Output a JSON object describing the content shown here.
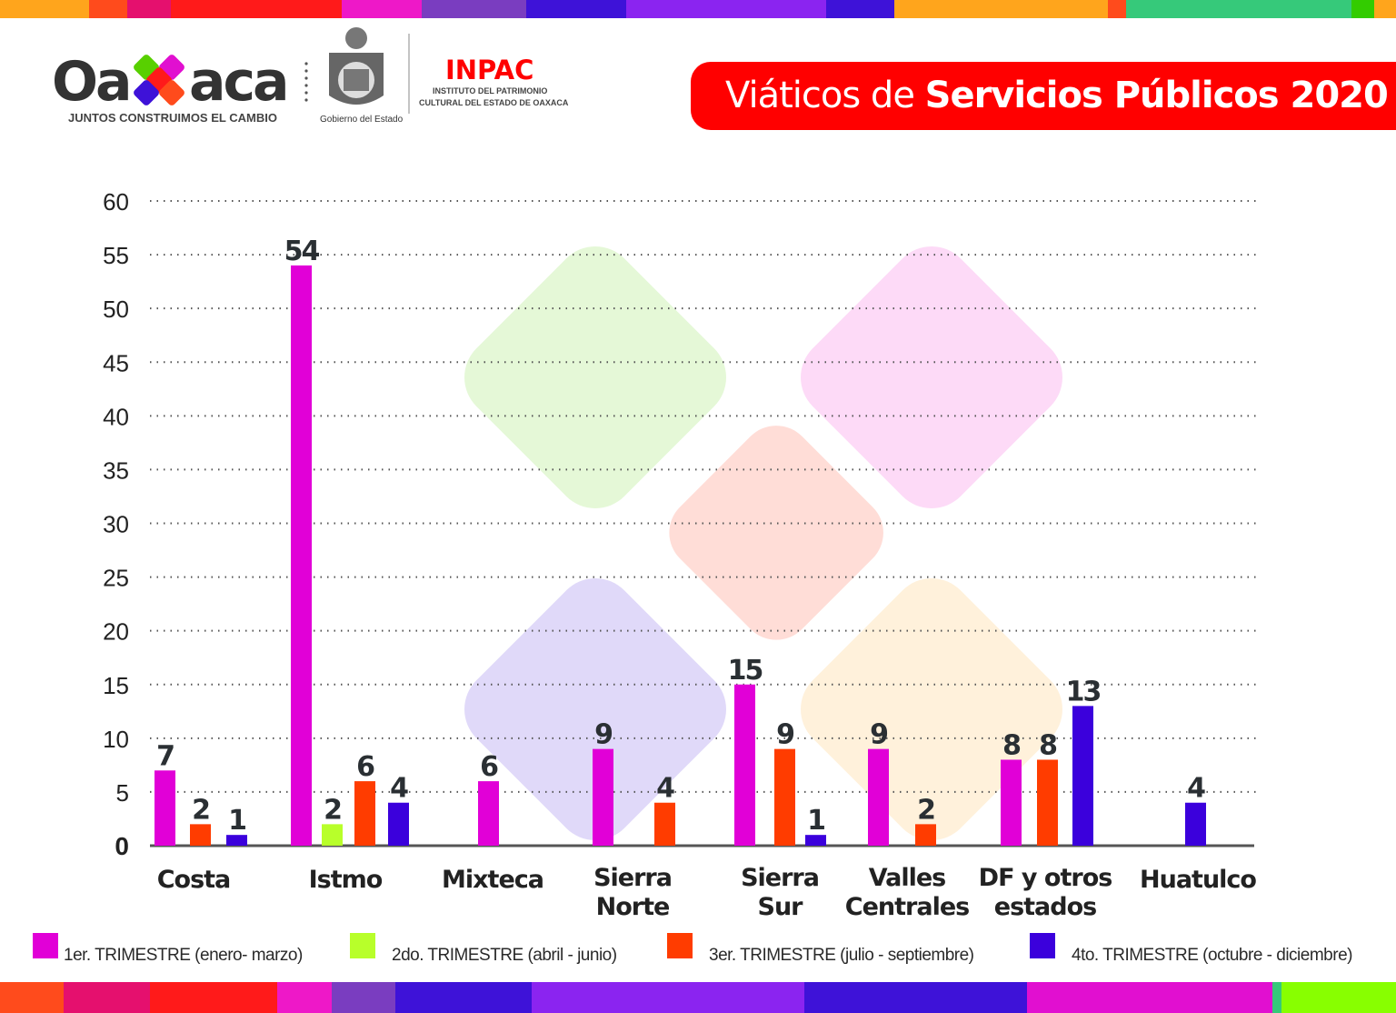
{
  "header": {
    "logo_oaxaca": "Oaxaca",
    "logo_tagline": "JUNTOS CONSTRUIMOS EL CAMBIO",
    "gobierno": "Gobierno del Estado",
    "inpac": "INPAC",
    "inpac_line1": "INSTITUTO DEL PATRIMONIO",
    "inpac_line2": "CULTURAL DEL ESTADO DE OAXACA",
    "title_light": "Viáticos de ",
    "title_bold": "Servicios Públicos 2020"
  },
  "colors": {
    "q1": "#e100d7",
    "q2": "#b8ff2a",
    "q3": "#ff3c00",
    "q4": "#3b00dc",
    "title_bg": "#ff0000",
    "label": "#2a2f33"
  },
  "chart_data": {
    "type": "bar",
    "title": "Viáticos de Servicios Públicos 2020",
    "categories": [
      "Costa",
      "Istmo",
      "Mixteca",
      "Sierra Norte",
      "Sierra Sur",
      "Valles Centrales",
      "DF y otros estados",
      "Huatulco"
    ],
    "category_lines": [
      [
        "Costa"
      ],
      [
        "Istmo"
      ],
      [
        "Mixteca"
      ],
      [
        "Sierra",
        "Norte"
      ],
      [
        "Sierra",
        "Sur"
      ],
      [
        "Valles",
        "Centrales"
      ],
      [
        "DF y otros",
        "estados"
      ],
      [
        "Huatulco"
      ]
    ],
    "series": [
      {
        "name": "1er. TRIMESTRE (enero- marzo)",
        "color": "#e100d7",
        "values": [
          7,
          54,
          6,
          9,
          15,
          9,
          8,
          null
        ]
      },
      {
        "name": "2do. TRIMESTRE (abril - junio)",
        "color": "#b8ff2a",
        "values": [
          null,
          2,
          null,
          null,
          null,
          null,
          null,
          null
        ]
      },
      {
        "name": "3er. TRIMESTRE (julio - septiembre)",
        "color": "#ff3c00",
        "values": [
          2,
          6,
          null,
          4,
          9,
          2,
          8,
          null
        ]
      },
      {
        "name": "4to. TRIMESTRE (octubre - diciembre)",
        "color": "#3b00dc",
        "values": [
          1,
          4,
          null,
          null,
          1,
          null,
          13,
          4
        ]
      }
    ],
    "yticks": [
      0,
      5,
      10,
      15,
      20,
      25,
      30,
      35,
      40,
      45,
      50,
      55,
      60
    ],
    "ylim": [
      0,
      60
    ],
    "grid": true,
    "legend": "bottom",
    "data_labels": true
  }
}
